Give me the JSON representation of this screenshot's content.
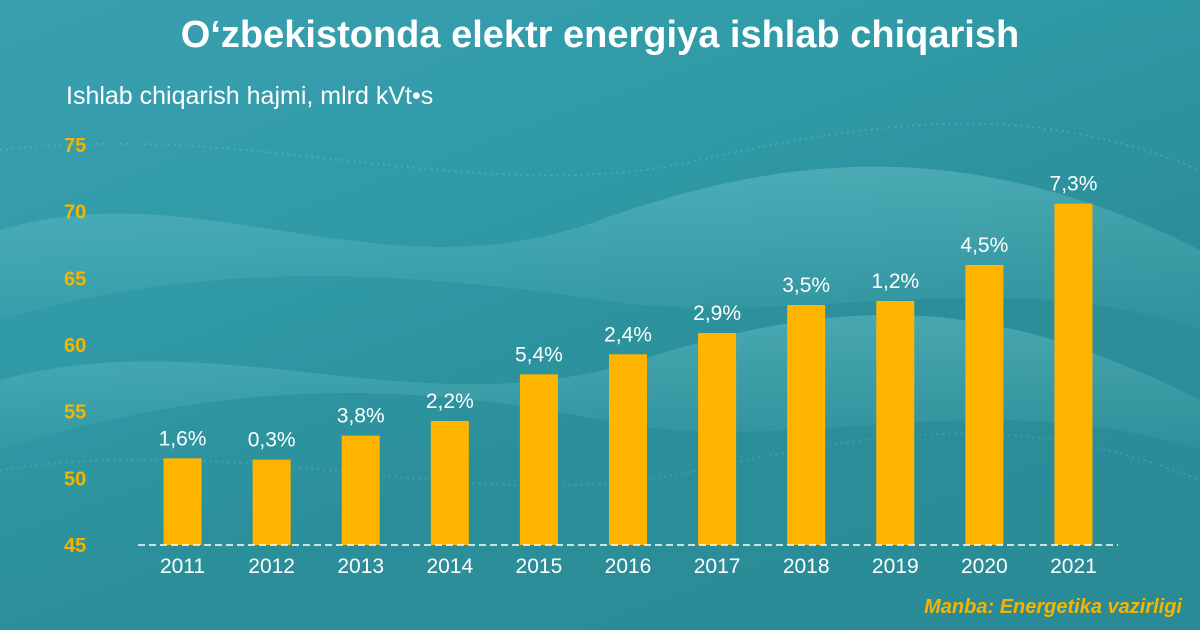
{
  "title": "O‘zbekistonda elektr energiya ishlab chiqarish",
  "subtitle": "Ishlab chiqarish hajmi, mlrd kVt•s",
  "source": "Manba: Energetika vazirligi",
  "colors": {
    "bar": "#ffb400",
    "tick": "#f4b400",
    "text": "#ffffff"
  },
  "chart_data": {
    "type": "bar",
    "categories": [
      "2011",
      "2012",
      "2013",
      "2014",
      "2015",
      "2016",
      "2017",
      "2018",
      "2019",
      "2020",
      "2021"
    ],
    "values": [
      51.5,
      51.4,
      53.2,
      54.3,
      57.8,
      59.3,
      60.9,
      63.0,
      63.3,
      66.0,
      70.6
    ],
    "data_labels": [
      "1,6%",
      "0,3%",
      "3,8%",
      "2,2%",
      "5,4%",
      "2,4%",
      "2,9%",
      "3,5%",
      "1,2%",
      "4,5%",
      "7,3%"
    ],
    "yticks": [
      "45",
      "50",
      "55",
      "60",
      "65",
      "70",
      "75"
    ],
    "ylim": [
      45,
      75
    ],
    "ylabel": "Ishlab chiqarish hajmi, mlrd kVt•s",
    "xlabel": "",
    "grid": false,
    "legend": "none"
  }
}
